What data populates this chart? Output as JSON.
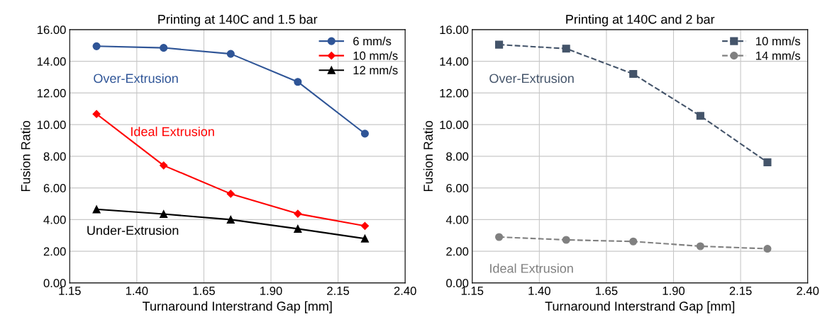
{
  "chart_data": [
    {
      "type": "line",
      "title": "Printing at 140C and 1.5 bar",
      "xlabel": "Turnaround Interstrand Gap [mm]",
      "ylabel": "Fusion Ratio",
      "x": [
        1.25,
        1.5,
        1.75,
        2.0,
        2.25
      ],
      "series": [
        {
          "name": "6 mm/s",
          "color": "#2f5597",
          "marker": "circle",
          "line_style": "solid",
          "values": [
            14.95,
            14.85,
            14.47,
            12.7,
            9.43
          ]
        },
        {
          "name": "10 mm/s",
          "color": "#ff0000",
          "marker": "diamond",
          "line_style": "solid",
          "values": [
            10.67,
            7.42,
            5.63,
            4.37,
            3.6
          ]
        },
        {
          "name": "12 mm/s",
          "color": "#000000",
          "marker": "triangle",
          "line_style": "solid",
          "values": [
            4.65,
            4.35,
            4.0,
            3.42,
            2.8
          ]
        }
      ],
      "annotations": [
        "Over-Extrusion",
        "Ideal Extrusion",
        "Under-Extrusion"
      ],
      "xlim": [
        1.15,
        2.4
      ],
      "xticks": [
        {
          "value": 1.15,
          "label": "1.15"
        },
        {
          "value": 1.4,
          "label": "1.40"
        },
        {
          "value": 1.65,
          "label": "1.65"
        },
        {
          "value": 1.9,
          "label": "1.90"
        },
        {
          "value": 2.15,
          "label": "2.15"
        },
        {
          "value": 2.4,
          "label": "2.40"
        }
      ],
      "ylim": [
        0,
        16
      ],
      "yticks": [
        {
          "value": 0,
          "label": "0.00"
        },
        {
          "value": 2,
          "label": "2.00"
        },
        {
          "value": 4,
          "label": "4.00"
        },
        {
          "value": 6,
          "label": "6.00"
        },
        {
          "value": 8,
          "label": "8.00"
        },
        {
          "value": 10,
          "label": "10.00"
        },
        {
          "value": 12,
          "label": "12.00"
        },
        {
          "value": 14,
          "label": "14.00"
        },
        {
          "value": 16,
          "label": "16.00"
        }
      ],
      "grid": true,
      "legend": "top right"
    },
    {
      "type": "line",
      "title": "Printing at 140C and 2 bar",
      "xlabel": "Turnaround Interstrand Gap [mm]",
      "ylabel": "Fusion Ratio",
      "x": [
        1.25,
        1.5,
        1.75,
        2.0,
        2.25
      ],
      "series": [
        {
          "name": "10 mm/s",
          "color": "#44546a",
          "marker": "square",
          "line_style": "dashed",
          "values": [
            15.05,
            14.8,
            13.2,
            10.55,
            7.62
          ]
        },
        {
          "name": "14 mm/s",
          "color": "#808080",
          "marker": "circle",
          "line_style": "dashed",
          "values": [
            2.9,
            2.72,
            2.62,
            2.32,
            2.16
          ]
        }
      ],
      "annotations": [
        "Over-Extrusion",
        "Ideal Extrusion"
      ],
      "xlim": [
        1.15,
        2.4
      ],
      "xticks": [
        {
          "value": 1.15,
          "label": "1.15"
        },
        {
          "value": 1.4,
          "label": "1.40"
        },
        {
          "value": 1.65,
          "label": "1.65"
        },
        {
          "value": 1.9,
          "label": "1.90"
        },
        {
          "value": 2.15,
          "label": "2.15"
        },
        {
          "value": 2.4,
          "label": "2.40"
        }
      ],
      "ylim": [
        0,
        16
      ],
      "yticks": [
        {
          "value": 0,
          "label": "0.00"
        },
        {
          "value": 2,
          "label": "2.00"
        },
        {
          "value": 4,
          "label": "4.00"
        },
        {
          "value": 6,
          "label": "6.00"
        },
        {
          "value": 8,
          "label": "8.00"
        },
        {
          "value": 10,
          "label": "10.00"
        },
        {
          "value": 12,
          "label": "12.00"
        },
        {
          "value": 14,
          "label": "14.00"
        },
        {
          "value": 16,
          "label": "16.00"
        }
      ],
      "grid": true,
      "legend": "top right"
    }
  ]
}
